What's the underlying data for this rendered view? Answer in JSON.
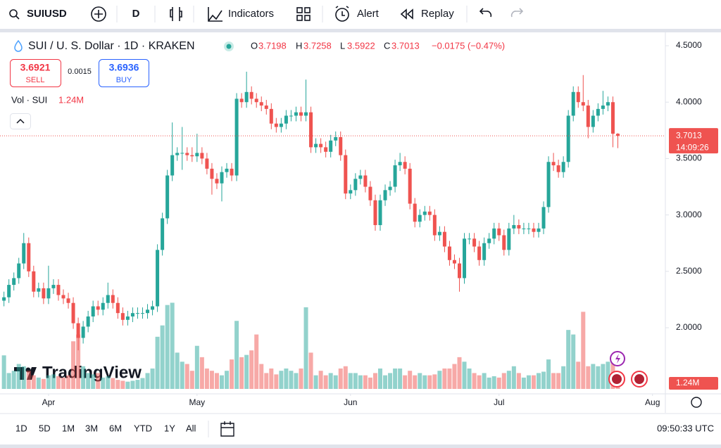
{
  "toolbar": {
    "symbol": "SUIUSD",
    "interval": "D",
    "indicators": "Indicators",
    "alert": "Alert",
    "replay": "Replay"
  },
  "legend": {
    "title": "SUI / U. S. Dollar · 1D · KRAKEN",
    "o": "O",
    "h": "H",
    "l": "L",
    "c": "C",
    "change": "−0.0175 (−0.47%)",
    "sell_price": 3.6921,
    "sell": "SELL",
    "spread": 0.0015,
    "buy_price": 3.6936,
    "buy": "BUY",
    "vol": "Vol · SUI"
  },
  "chart_data": {
    "type": "candlestick",
    "watermark": "TradingView",
    "up_color": "#26a69a",
    "down_color": "#ef5350",
    "xlim": [
      -0.8,
      133.6
    ],
    "xticks": [
      {
        "value": 9,
        "label": "Apr"
      },
      {
        "value": 39,
        "label": "May"
      },
      {
        "value": 70,
        "label": "Jun"
      },
      {
        "value": 100,
        "label": "Jul"
      },
      {
        "value": 131,
        "label": "Aug"
      }
    ],
    "ylim": [
      1.414,
      4.625
    ],
    "yticks": [
      {
        "value": 2,
        "label": "2.0000"
      },
      {
        "value": 2.5,
        "label": "2.5000"
      },
      {
        "value": 3,
        "label": "3.0000"
      },
      {
        "value": 3.5,
        "label": "3.5000"
      },
      {
        "value": 4,
        "label": "4.0000"
      },
      {
        "value": 4.5,
        "label": "4.5000"
      }
    ],
    "grid": false,
    "open": [
      2.24,
      2.27,
      2.38,
      2.44,
      2.57,
      2.75,
      2.5,
      2.32,
      2.35,
      2.26,
      2.35,
      2.38,
      2.29,
      2.26,
      2.22,
      2.04,
      1.91,
      2.01,
      2.1,
      2.19,
      2.16,
      2.22,
      2.29,
      2.22,
      2.13,
      2.07,
      2.1,
      2.13,
      2.13,
      2.13,
      2.16,
      2.19,
      2.69,
      2.97,
      3.35,
      3.53,
      3.55,
      3.55,
      3.53,
      3.52,
      3.55,
      3.5,
      3.41,
      3.32,
      3.28,
      3.38,
      3.41,
      3.35,
      4.03,
      4.0,
      4.09,
      4.03,
      4.0,
      3.97,
      3.94,
      3.81,
      3.78,
      3.81,
      3.88,
      3.88,
      3.91,
      3.88,
      3.91,
      3.6,
      3.63,
      3.6,
      3.56,
      3.66,
      3.69,
      3.53,
      3.19,
      3.22,
      3.32,
      3.35,
      3.25,
      3.13,
      2.91,
      3.13,
      3.22,
      3.25,
      3.44,
      3.47,
      3.41,
      3.1,
      2.94,
      3.0,
      3.03,
      3.0,
      2.82,
      2.85,
      2.72,
      2.6,
      2.57,
      2.44,
      2.79,
      2.79,
      2.72,
      2.6,
      2.75,
      2.79,
      2.88,
      2.82,
      2.69,
      2.88,
      2.91,
      2.88,
      2.88,
      2.88,
      2.85,
      2.88,
      3.07,
      3.47,
      3.44,
      3.38,
      3.47,
      3.88,
      4.09,
      4.0,
      3.97,
      3.78,
      3.88,
      3.94,
      3.97,
      4.0,
      3.7198
    ],
    "high": [
      2.32,
      2.43,
      2.49,
      2.62,
      2.84,
      2.8,
      2.55,
      2.4,
      2.4,
      2.55,
      2.43,
      2.43,
      2.34,
      2.31,
      2.27,
      2.09,
      2.06,
      2.15,
      2.24,
      2.24,
      2.27,
      2.4,
      2.34,
      2.27,
      2.18,
      2.15,
      2.18,
      2.18,
      2.18,
      2.21,
      2.24,
      2.74,
      3.02,
      3.4,
      3.82,
      3.6,
      3.78,
      3.6,
      3.6,
      3.72,
      3.6,
      3.55,
      3.46,
      3.37,
      3.43,
      3.46,
      3.46,
      4.08,
      4.08,
      4.27,
      4.14,
      4.08,
      4.05,
      4.02,
      3.99,
      3.86,
      3.86,
      3.93,
      3.93,
      3.96,
      3.96,
      4.2,
      3.96,
      3.68,
      3.68,
      3.65,
      3.71,
      3.74,
      3.74,
      3.58,
      3.27,
      3.37,
      3.4,
      3.4,
      3.3,
      3.18,
      3.18,
      3.27,
      3.3,
      3.49,
      3.55,
      3.52,
      3.46,
      3.15,
      3.05,
      3.08,
      3.08,
      3.05,
      2.9,
      2.9,
      2.77,
      2.65,
      2.62,
      2.84,
      2.84,
      2.84,
      2.77,
      2.8,
      2.84,
      2.93,
      2.93,
      2.87,
      2.93,
      3.0,
      2.96,
      2.93,
      2.93,
      2.93,
      2.93,
      3.12,
      3.52,
      3.55,
      3.49,
      3.52,
      3.93,
      4.14,
      4.14,
      4.24,
      4.02,
      3.93,
      3.99,
      4.1,
      4.05,
      4.05,
      3.7258
    ],
    "low": [
      2.19,
      2.22,
      2.33,
      2.39,
      2.52,
      2.45,
      2.27,
      2.27,
      2.21,
      2.21,
      2.3,
      2.24,
      2.21,
      2.17,
      1.99,
      1.8,
      1.86,
      1.96,
      2.05,
      2.11,
      2.11,
      2.17,
      2.17,
      2.08,
      2.02,
      2.02,
      2.05,
      2.08,
      2.08,
      2.08,
      2.11,
      2.14,
      2.64,
      2.92,
      3.3,
      3.48,
      3.4,
      3.48,
      3.47,
      3.47,
      3.45,
      3.36,
      3.18,
      3.23,
      3.12,
      3.33,
      3.3,
      3.3,
      3.95,
      3.95,
      3.98,
      3.95,
      3.92,
      3.89,
      3.76,
      3.73,
      3.73,
      3.76,
      3.83,
      3.83,
      3.83,
      3.83,
      3.55,
      3.55,
      3.55,
      3.51,
      3.51,
      3.61,
      3.48,
      3.14,
      3.14,
      3.17,
      3.27,
      3.2,
      3.08,
      2.86,
      2.86,
      3.08,
      3.17,
      3.2,
      3.39,
      3.36,
      3.05,
      2.89,
      2.89,
      2.95,
      2.95,
      2.77,
      2.77,
      2.67,
      2.55,
      2.52,
      2.32,
      2.39,
      2.74,
      2.67,
      2.55,
      2.55,
      2.7,
      2.74,
      2.77,
      2.64,
      2.64,
      2.83,
      2.83,
      2.83,
      2.83,
      2.8,
      2.8,
      2.83,
      3.02,
      3.39,
      3.33,
      3.33,
      3.42,
      3.83,
      3.95,
      3.92,
      3.68,
      3.73,
      3.83,
      3.89,
      3.92,
      3.6,
      3.5922
    ],
    "close": [
      2.27,
      2.38,
      2.44,
      2.57,
      2.75,
      2.5,
      2.32,
      2.35,
      2.26,
      2.35,
      2.38,
      2.29,
      2.26,
      2.22,
      2.04,
      1.91,
      2.01,
      2.1,
      2.19,
      2.16,
      2.22,
      2.29,
      2.22,
      2.13,
      2.07,
      2.1,
      2.13,
      2.13,
      2.13,
      2.16,
      2.19,
      2.69,
      2.97,
      3.35,
      3.53,
      3.55,
      3.55,
      3.53,
      3.52,
      3.55,
      3.5,
      3.41,
      3.32,
      3.28,
      3.38,
      3.41,
      3.35,
      4.03,
      4.0,
      4.09,
      4.03,
      4.0,
      3.97,
      3.94,
      3.81,
      3.78,
      3.81,
      3.88,
      3.88,
      3.91,
      3.88,
      3.91,
      3.6,
      3.63,
      3.6,
      3.56,
      3.66,
      3.69,
      3.53,
      3.19,
      3.22,
      3.32,
      3.35,
      3.25,
      3.13,
      2.91,
      3.13,
      3.22,
      3.25,
      3.44,
      3.47,
      3.41,
      3.1,
      2.94,
      3.0,
      3.03,
      3.0,
      2.82,
      2.85,
      2.72,
      2.6,
      2.57,
      2.44,
      2.79,
      2.79,
      2.72,
      2.6,
      2.75,
      2.79,
      2.88,
      2.82,
      2.69,
      2.88,
      2.91,
      2.88,
      2.88,
      2.88,
      2.85,
      2.88,
      3.07,
      3.47,
      3.44,
      3.38,
      3.47,
      3.88,
      4.09,
      4.0,
      3.97,
      3.78,
      3.88,
      3.94,
      3.97,
      4.0,
      3.72,
      3.7013
    ],
    "volume": [
      7.4,
      3.5,
      4.0,
      5.5,
      5.0,
      4.0,
      3.0,
      2.5,
      2.2,
      3.0,
      3.2,
      2.8,
      2.5,
      3.0,
      10.5,
      12.0,
      5.0,
      3.5,
      3.2,
      3.5,
      2.5,
      2.8,
      2.4,
      2.0,
      1.8,
      1.6,
      1.8,
      2.0,
      2.4,
      3.5,
      4.5,
      11.5,
      14.0,
      18.5,
      19.0,
      8.0,
      6.0,
      5.5,
      4.0,
      9.5,
      7.0,
      4.5,
      4.0,
      3.5,
      3.0,
      4.0,
      6.5,
      15.0,
      7.0,
      7.5,
      8.5,
      12.0,
      5.5,
      3.5,
      4.5,
      3.2,
      4.0,
      4.5,
      4.0,
      3.5,
      4.5,
      18.0,
      8.0,
      3.0,
      4.0,
      3.0,
      3.5,
      3.0,
      4.5,
      5.0,
      3.5,
      3.5,
      3.0,
      3.0,
      2.5,
      3.5,
      4.5,
      3.0,
      3.5,
      4.5,
      4.5,
      3.0,
      4.0,
      3.0,
      3.5,
      3.0,
      3.0,
      3.2,
      4.0,
      4.5,
      4.5,
      5.5,
      7.0,
      6.0,
      4.5,
      3.5,
      3.0,
      3.5,
      2.5,
      2.8,
      2.5,
      3.5,
      4.0,
      5.0,
      3.5,
      2.5,
      3.0,
      3.0,
      3.5,
      3.8,
      6.5,
      3.5,
      3.5,
      5.0,
      13.0,
      12.0,
      6.0,
      17.0,
      5.0,
      5.5,
      5.0,
      5.5,
      6.0,
      6.5,
      1.24
    ],
    "volume_label": "1.24M",
    "countdown": "14:09:26"
  },
  "footer": {
    "ranges": [
      "1D",
      "5D",
      "1M",
      "3M",
      "6M",
      "YTD",
      "1Y",
      "All"
    ],
    "time": "09:50:33 UTC"
  }
}
